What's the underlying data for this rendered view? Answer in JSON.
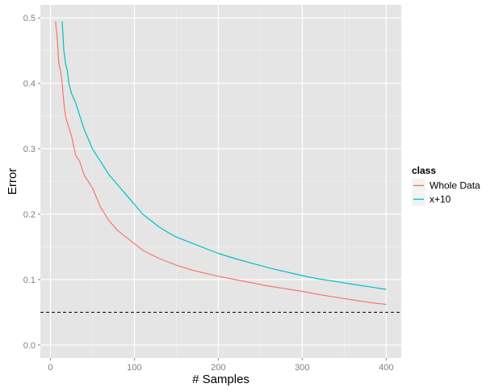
{
  "chart_data": {
    "type": "line",
    "title": "",
    "xlabel": "# Samples",
    "ylabel": "Error",
    "xlim": [
      -12,
      418
    ],
    "ylim": [
      -0.02,
      0.52
    ],
    "xticks": [
      0,
      100,
      200,
      300,
      400
    ],
    "xtick_labels": [
      "0",
      "100",
      "200",
      "300",
      "400"
    ],
    "yticks": [
      0.0,
      0.1,
      0.2,
      0.3,
      0.4,
      0.5
    ],
    "ytick_labels": [
      "0.0",
      "0.1",
      "0.2",
      "0.3",
      "0.4",
      "0.5"
    ],
    "grid": true,
    "legend": {
      "title": "class",
      "position": "right"
    },
    "reference_line": {
      "y": 0.05,
      "style": "dashed",
      "color": "#000000"
    },
    "series": [
      {
        "name": "Whole Data",
        "color": "#F8766D",
        "x": [
          6,
          8,
          10,
          12,
          14,
          16,
          18,
          20,
          25,
          30,
          35,
          40,
          45,
          50,
          55,
          60,
          70,
          80,
          90,
          100,
          110,
          120,
          130,
          140,
          150,
          160,
          170,
          180,
          190,
          200,
          220,
          240,
          260,
          280,
          300,
          320,
          340,
          360,
          380,
          400
        ],
        "y": [
          0.495,
          0.47,
          0.43,
          0.42,
          0.4,
          0.37,
          0.35,
          0.34,
          0.32,
          0.29,
          0.28,
          0.26,
          0.25,
          0.24,
          0.225,
          0.21,
          0.19,
          0.175,
          0.165,
          0.155,
          0.145,
          0.138,
          0.132,
          0.127,
          0.122,
          0.118,
          0.114,
          0.111,
          0.108,
          0.105,
          0.1,
          0.095,
          0.09,
          0.086,
          0.082,
          0.077,
          0.073,
          0.069,
          0.065,
          0.062
        ]
      },
      {
        "name": "x+10",
        "color": "#00BFC4",
        "x": [
          14,
          16,
          18,
          20,
          22,
          25,
          30,
          35,
          40,
          45,
          50,
          55,
          60,
          70,
          80,
          90,
          100,
          110,
          120,
          130,
          140,
          150,
          160,
          170,
          180,
          190,
          200,
          220,
          240,
          260,
          280,
          300,
          320,
          340,
          360,
          380,
          400
        ],
        "y": [
          0.495,
          0.45,
          0.43,
          0.42,
          0.4,
          0.385,
          0.37,
          0.35,
          0.33,
          0.315,
          0.3,
          0.29,
          0.28,
          0.26,
          0.245,
          0.23,
          0.215,
          0.2,
          0.19,
          0.18,
          0.172,
          0.165,
          0.16,
          0.155,
          0.15,
          0.145,
          0.14,
          0.132,
          0.125,
          0.118,
          0.112,
          0.106,
          0.101,
          0.097,
          0.093,
          0.089,
          0.085
        ]
      }
    ]
  }
}
